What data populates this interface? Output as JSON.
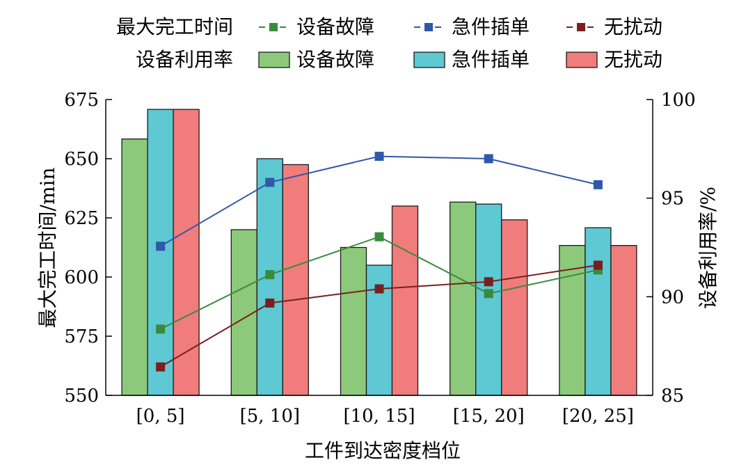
{
  "chart_data": {
    "type": "bar",
    "xlabel": "工件到达密度档位",
    "ylabel_left": "最大完工时间/min",
    "ylabel_right": "设备利用率/%",
    "categories": [
      "[0, 5]",
      "[5, 10]",
      "[10, 15]",
      "[15, 20]",
      "[20, 25]"
    ],
    "ylim_left": [
      550,
      675
    ],
    "yticks_left": [
      "550",
      "575",
      "600",
      "625",
      "650",
      "675"
    ],
    "ylim_right": [
      85,
      100
    ],
    "yticks_right": [
      "85",
      "90",
      "95",
      "100"
    ],
    "grid": false,
    "legend": {
      "placement": "top",
      "row1_title": "最大完工时间",
      "row2_title": "设备利用率",
      "scenario_names": [
        "设备故障",
        "急件插单",
        "无扰动"
      ]
    },
    "bar_series": [
      {
        "name": "设备故障",
        "color": "#8dc97a",
        "values": [
          98.0,
          93.4,
          92.5,
          94.8,
          92.6
        ]
      },
      {
        "name": "急件插单",
        "color": "#5ec8d3",
        "values": [
          99.5,
          97.0,
          91.6,
          94.7,
          93.5
        ]
      },
      {
        "name": "无扰动",
        "color": "#f07c7c",
        "values": [
          99.5,
          96.7,
          94.6,
          93.9,
          92.6
        ]
      }
    ],
    "line_series": [
      {
        "name": "设备故障",
        "color": "#3a8a3e",
        "values": [
          578,
          601,
          617,
          593,
          603
        ]
      },
      {
        "name": "急件插单",
        "color": "#2f58a8",
        "values": [
          613,
          640,
          651,
          650,
          639
        ]
      },
      {
        "name": "无扰动",
        "color": "#7a1f1f",
        "values": [
          562,
          589,
          595,
          598,
          605
        ]
      }
    ]
  }
}
